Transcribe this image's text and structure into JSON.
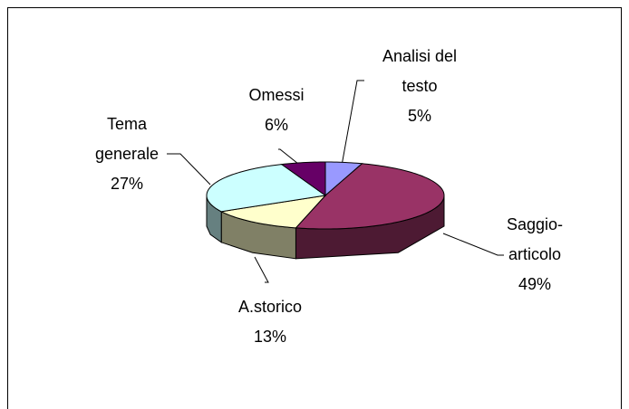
{
  "chart_data": {
    "type": "pie3d",
    "categories": [
      "Analisi del testo",
      "Saggio-articolo",
      "A.storico",
      "Tema generale",
      "Omessi"
    ],
    "values": [
      5,
      49,
      13,
      27,
      6
    ],
    "value_labels": [
      "5%",
      "49%",
      "13%",
      "27%",
      "6%"
    ],
    "colors": [
      "#9999ff",
      "#993366",
      "#ffffcc",
      "#ccffff",
      "#660066"
    ]
  }
}
